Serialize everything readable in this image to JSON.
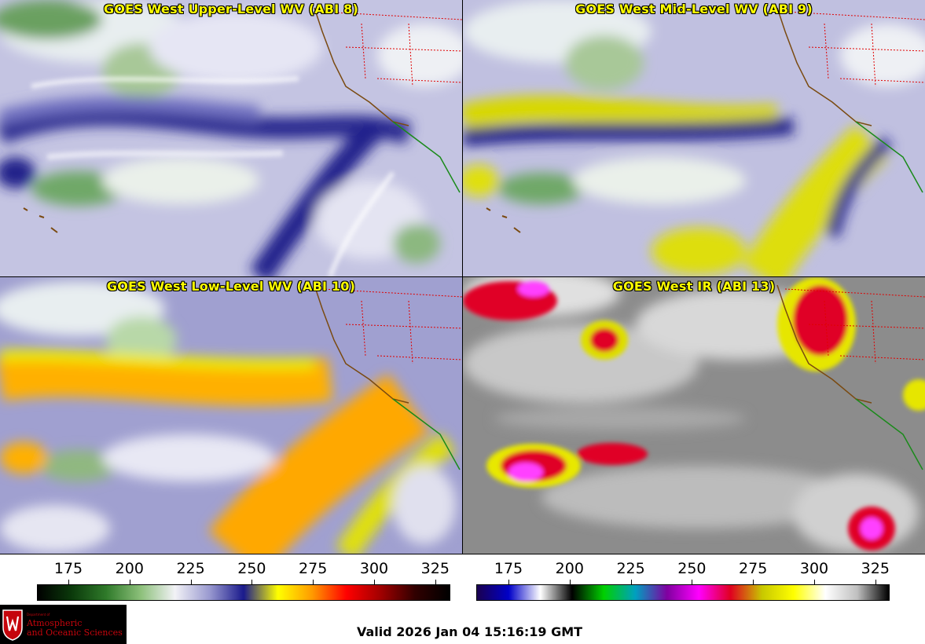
{
  "panels": [
    {
      "title": "GOES West Upper-Level WV (ABI 8)"
    },
    {
      "title": "GOES West Mid-Level WV (ABI 9)"
    },
    {
      "title": "GOES West Low-Level WV (ABI 10)"
    },
    {
      "title": "GOES West IR (ABI 13)"
    }
  ],
  "colorbar_left": {
    "ticks": [
      "175",
      "200",
      "225",
      "250",
      "275",
      "300",
      "325"
    ],
    "colors": [
      "#000000",
      "#0b3a0b",
      "#2f7a2a",
      "#8cc07a",
      "#f2f2f6",
      "#9a9ad0",
      "#1a1a8c",
      "#ffff00",
      "#ff9a00",
      "#ff0000",
      "#a00000",
      "#300000",
      "#000000"
    ]
  },
  "colorbar_right": {
    "ticks": [
      "175",
      "200",
      "225",
      "250",
      "275",
      "300",
      "325"
    ],
    "colors": [
      "#1a0050",
      "#0000c8",
      "#ffffff",
      "#000000",
      "#00d000",
      "#00a0c0",
      "#8000a0",
      "#ff00ff",
      "#e00020",
      "#c8c800",
      "#ffff00",
      "#ffffff",
      "#c0c0c0",
      "#000000"
    ]
  },
  "logo": {
    "small": "Department of",
    "line1": "Atmospheric",
    "line2": "and Oceanic Sciences"
  },
  "valid_time": "Valid 2026 Jan 04 15:16:19 GMT"
}
